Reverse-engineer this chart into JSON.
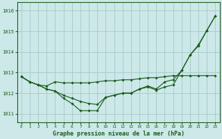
{
  "bg_color": "#cce8e8",
  "grid_color": "#aacccc",
  "line_color": "#1a5c1a",
  "title": "Graphe pression niveau de la mer (hPa)",
  "xlim": [
    -0.5,
    23.5
  ],
  "ylim": [
    1010.6,
    1016.4
  ],
  "yticks": [
    1011,
    1012,
    1013,
    1014,
    1015,
    1016
  ],
  "xticks": [
    0,
    1,
    2,
    3,
    4,
    5,
    6,
    7,
    8,
    9,
    10,
    11,
    12,
    13,
    14,
    15,
    16,
    17,
    18,
    19,
    20,
    21,
    22,
    23
  ],
  "series": [
    [
      1012.8,
      1012.55,
      1012.4,
      1012.35,
      1012.55,
      1012.5,
      1012.5,
      1012.5,
      1012.5,
      1012.55,
      1012.6,
      1012.6,
      1012.65,
      1012.65,
      1012.7,
      1012.75,
      1012.75,
      1012.8,
      1012.85,
      1012.85,
      1012.85,
      1012.85,
      1012.85,
      1012.85
    ],
    [
      1012.8,
      1012.55,
      1012.4,
      1012.2,
      1012.1,
      1011.75,
      1011.5,
      1011.15,
      1011.15,
      1011.15,
      1011.8,
      1011.9,
      1012.0,
      1012.0,
      1012.2,
      1012.3,
      1012.15,
      1012.3,
      1012.4,
      1013.1,
      1013.85,
      1014.3,
      1015.05,
      1015.75
    ],
    [
      1012.8,
      1012.55,
      1012.4,
      1012.2,
      1012.1,
      1011.9,
      1011.75,
      1011.6,
      1011.5,
      1011.45,
      1011.8,
      1011.9,
      1012.0,
      1012.0,
      1012.2,
      1012.35,
      1012.2,
      1012.55,
      1012.65,
      1013.1,
      1013.85,
      1014.35,
      1015.05,
      1015.75
    ]
  ]
}
